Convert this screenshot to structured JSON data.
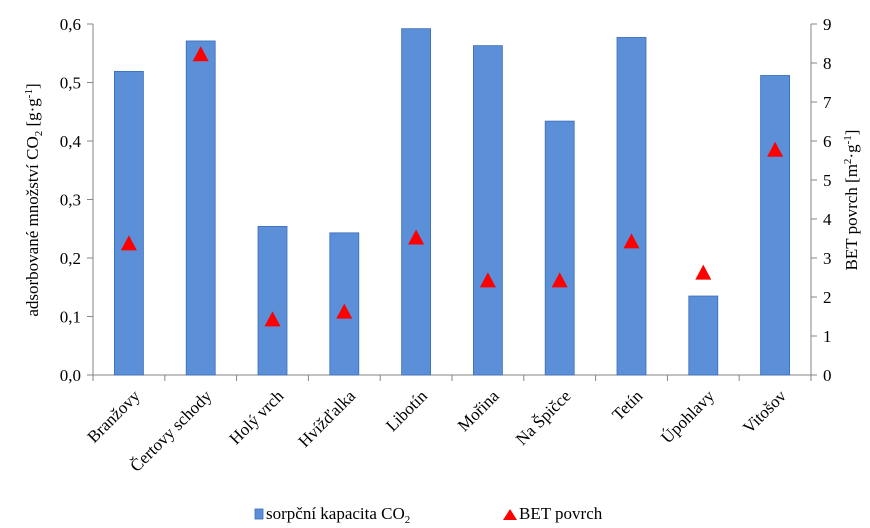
{
  "chart_data": {
    "type": "bar",
    "categories": [
      "Branžovy",
      "Čertovy schody",
      "Holý vrch",
      "Hvížďalka",
      "Libotín",
      "Mořina",
      "Na Špičce",
      "Tetín",
      "Úpohlavy",
      "Vitošov"
    ],
    "series": [
      {
        "name": "sorpční kapacita CO2",
        "type": "bar",
        "axis": "left",
        "color": "#5B8FD8",
        "values": [
          0.519,
          0.571,
          0.254,
          0.243,
          0.592,
          0.563,
          0.434,
          0.577,
          0.135,
          0.512
        ]
      },
      {
        "name": "BET povrch",
        "type": "scatter",
        "marker": "triangle",
        "axis": "right",
        "color": "#FF0000",
        "values": [
          3.35,
          8.2,
          1.4,
          1.6,
          3.5,
          2.4,
          2.4,
          3.4,
          2.6,
          5.75
        ]
      }
    ],
    "ylabel": "adsorbované množství CO2 [g·g-1]",
    "y2label": "BET povrch [m2·g-1]",
    "ylim": [
      0,
      0.6
    ],
    "y2lim": [
      0,
      9
    ],
    "yticks": [
      "0,0",
      "0,1",
      "0,2",
      "0,3",
      "0,4",
      "0,5",
      "0,6"
    ],
    "y2ticks": [
      "0",
      "1",
      "2",
      "3",
      "4",
      "5",
      "6",
      "7",
      "8",
      "9"
    ],
    "grid": false,
    "legend_position": "bottom"
  },
  "legend": {
    "bar_label": "sorpční kapacita CO",
    "bar_label_sub": "2",
    "marker_label": "BET povrch"
  },
  "axis_titles": {
    "left_main": "adsorbované množství CO",
    "left_sub": "2",
    "left_unit_a": " [g·g",
    "left_unit_sup": "-1",
    "left_unit_b": "]",
    "right_main": "BET povrch [m",
    "right_sup1": "2",
    "right_mid": "·g",
    "right_sup2": "-1",
    "right_end": "]"
  }
}
